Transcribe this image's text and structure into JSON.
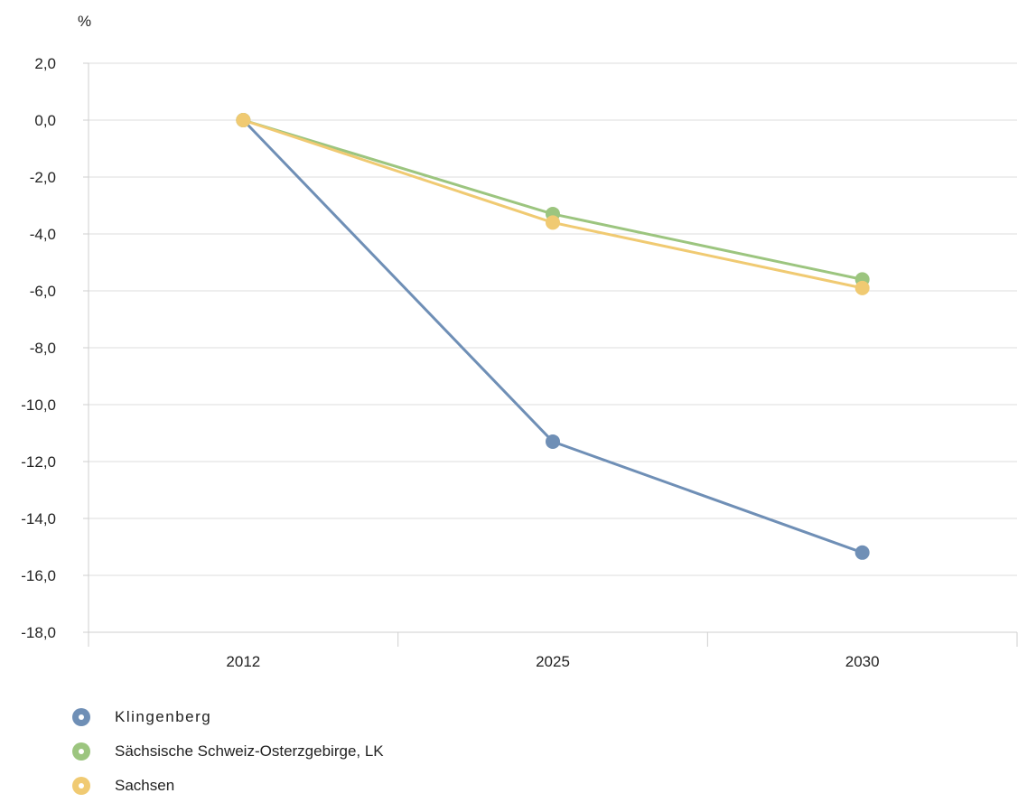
{
  "chart_data": {
    "type": "line",
    "unit": "%",
    "categories": [
      "2012",
      "2025",
      "2030"
    ],
    "ylim": [
      -18,
      2
    ],
    "yticks": [
      2,
      0,
      -2,
      -4,
      -6,
      -8,
      -10,
      -12,
      -14,
      -16,
      -18
    ],
    "ytick_labels": [
      "2,0",
      "0,0",
      "-2,0",
      "-4,0",
      "-6,0",
      "-8,0",
      "-10,0",
      "-12,0",
      "-14,0",
      "-16,0",
      "-18,0"
    ],
    "grid": true,
    "legend_position": "bottom-left",
    "series": [
      {
        "name": "Klingenberg",
        "values": [
          0,
          -11.3,
          -15.2
        ],
        "color": "#6f8fb6"
      },
      {
        "name": "Sächsische Schweiz-Osterzgebirge, LK",
        "values": [
          0,
          -3.3,
          -5.6
        ],
        "color": "#9cc57f"
      },
      {
        "name": "Sachsen",
        "values": [
          0,
          -3.6,
          -5.9
        ],
        "color": "#f0ca72"
      }
    ]
  }
}
